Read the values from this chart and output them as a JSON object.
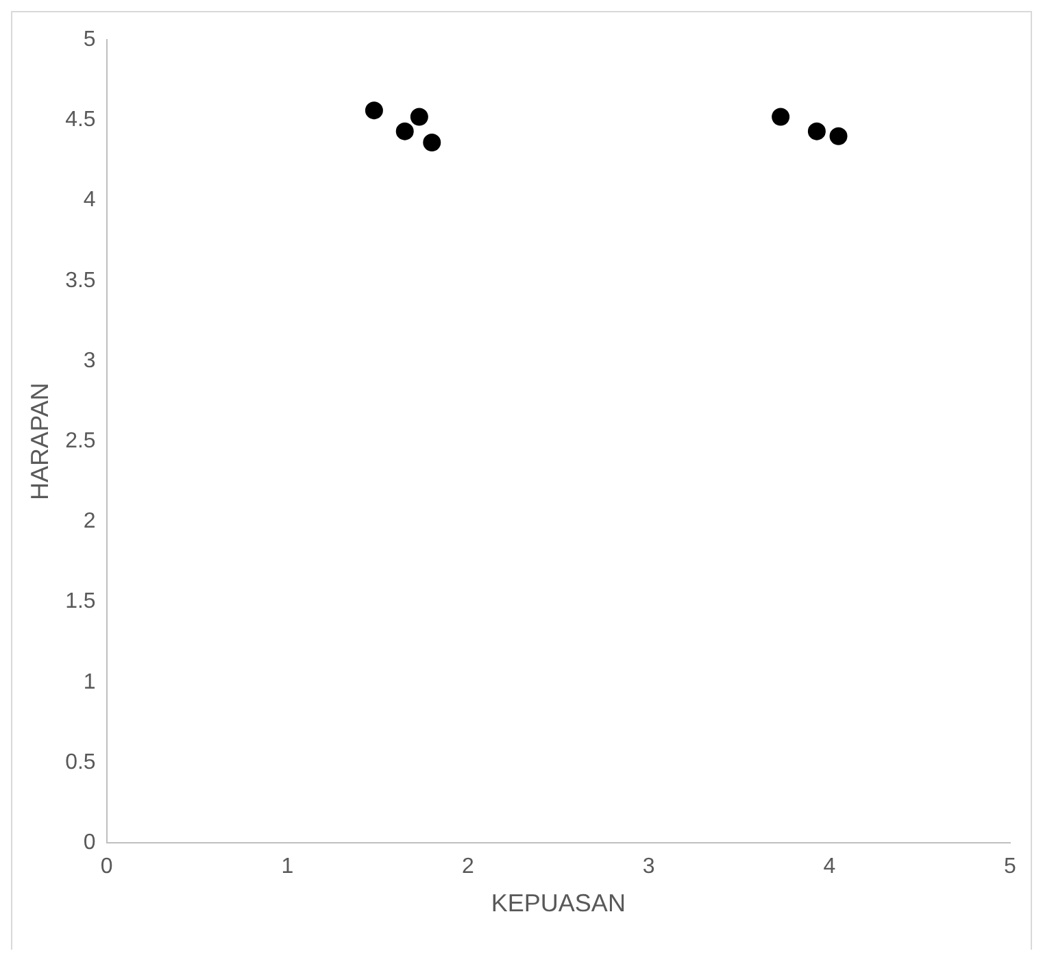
{
  "chart_data": {
    "type": "scatter",
    "xlabel": "KEPUASAN",
    "ylabel": "HARAPAN",
    "x": [
      1.48,
      1.65,
      1.73,
      1.8,
      3.73,
      3.93,
      4.05
    ],
    "series": [
      {
        "color": "#000000",
        "values": [
          4.56,
          4.43,
          4.52,
          4.36,
          4.52,
          4.43,
          4.4
        ]
      }
    ],
    "xlim": [
      0,
      5
    ],
    "xticks": [
      0,
      1,
      2,
      3,
      4,
      5
    ],
    "ylim": [
      0,
      5
    ],
    "yticks": [
      0,
      0.5,
      1,
      1.5,
      2,
      2.5,
      3,
      3.5,
      4,
      4.5,
      5
    ],
    "grid": false,
    "legend": false,
    "marker": "circle"
  }
}
